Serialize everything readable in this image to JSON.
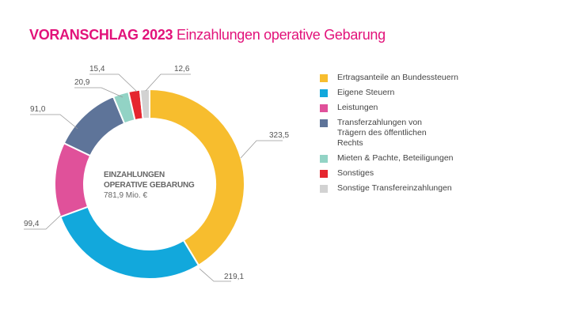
{
  "title": {
    "bold": "VORANSCHLAG 2023",
    "rest": "Einzahlungen operative Gebarung"
  },
  "center": {
    "line1": "EINZAHLUNGEN",
    "line2": "OPERATIVE GEBARUNG",
    "total": "781,9 Mio. €"
  },
  "chart_data": {
    "type": "pie",
    "donut": true,
    "unit": "Mio. €",
    "total": 781.9,
    "categories": [
      "Ertragsanteile an Bundessteuern",
      "Eigene Steuern",
      "Leistungen",
      "Transferzahlungen von Trägern des öffentlichen Rechts",
      "Mieten & Pachte, Beteiligungen",
      "Sonstiges",
      "Sonstige Transfereinzahlungen"
    ],
    "values": [
      323.5,
      219.1,
      99.4,
      91.0,
      20.9,
      15.4,
      12.6
    ],
    "data_labels": [
      "323,5",
      "219,1",
      "99,4",
      "91,0",
      "20,9",
      "15,4",
      "12,6"
    ],
    "colors": [
      "#f7bd2e",
      "#12a8dc",
      "#e0519a",
      "#5e7499",
      "#92d3c5",
      "#e5262f",
      "#d2d2d2"
    ],
    "legend_position": "right"
  },
  "legend": [
    {
      "label": "Ertragsanteile an Bundessteuern",
      "color": "#f7bd2e"
    },
    {
      "label": "Eigene Steuern",
      "color": "#12a8dc"
    },
    {
      "label": "Leistungen",
      "color": "#e0519a"
    },
    {
      "label": "Transferzahlungen von Trägern des öffentlichen Rechts",
      "color": "#5e7499"
    },
    {
      "label": "Mieten & Pachte, Beteiligungen",
      "color": "#92d3c5"
    },
    {
      "label": "Sonstiges",
      "color": "#e5262f"
    },
    {
      "label": "Sonstige Transfereinzahlungen",
      "color": "#d2d2d2"
    }
  ]
}
